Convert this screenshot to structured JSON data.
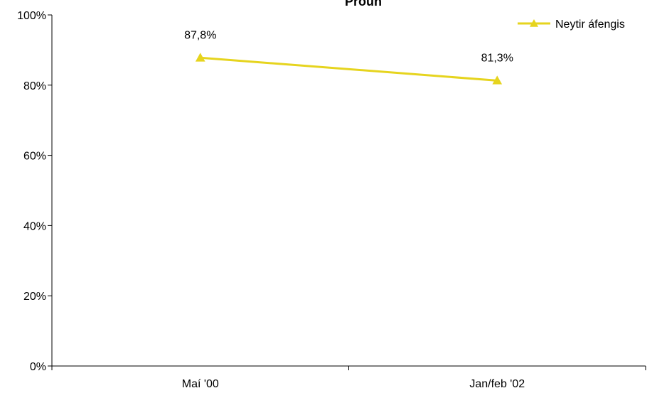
{
  "chart_data": {
    "type": "line",
    "title": "Próun",
    "categories": [
      "Maí '00",
      "Jan/feb '02"
    ],
    "series": [
      {
        "name": "Neytir áfengis",
        "values": [
          87.8,
          81.3
        ],
        "labels": [
          "87,8%",
          "81,3%"
        ],
        "color": "#e6d41e",
        "marker": "triangle"
      }
    ],
    "ylim": [
      0,
      100
    ],
    "yticks": [
      0,
      20,
      40,
      60,
      80,
      100
    ],
    "ytick_labels": [
      "0%",
      "20%",
      "40%",
      "60%",
      "80%",
      "100%"
    ],
    "xlabel": "",
    "ylabel": "",
    "grid": false,
    "legend_position": "top-right"
  }
}
